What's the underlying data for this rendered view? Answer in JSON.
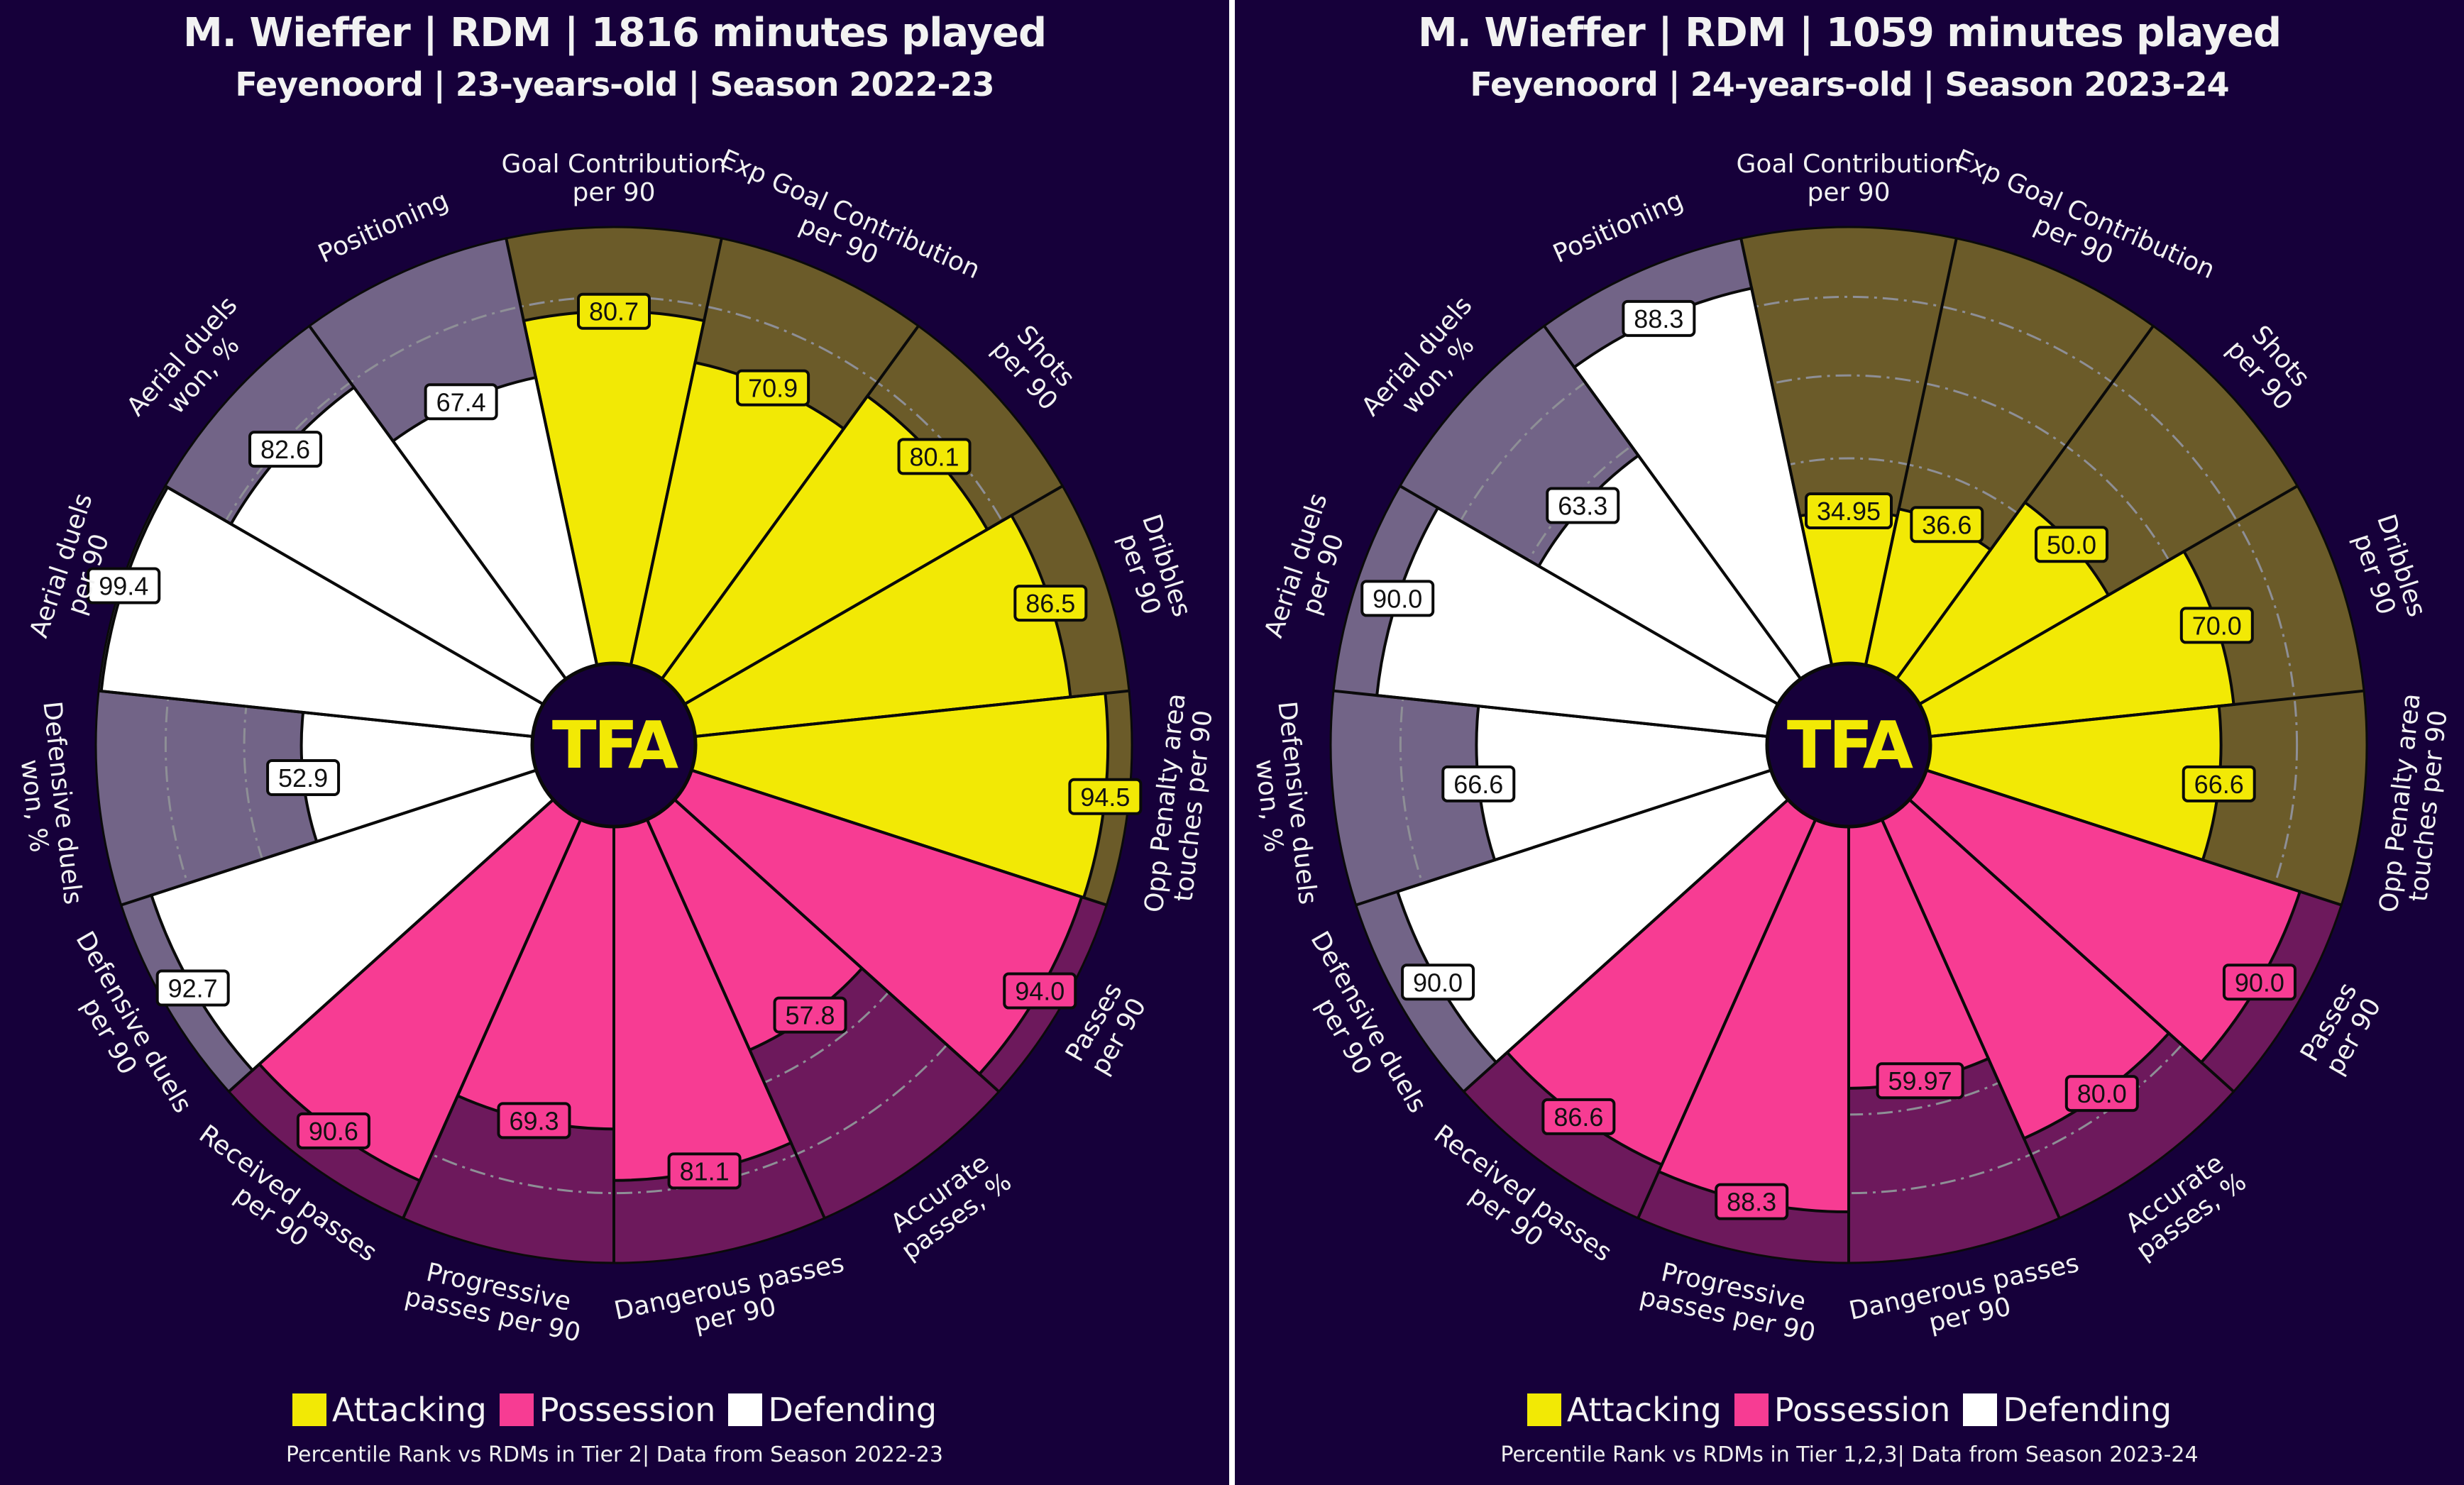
{
  "colors": {
    "background": "#16003a",
    "attacking": "#f2e905",
    "attacking_bg": "#6b5b29",
    "possession": "#f73c93",
    "possession_bg": "#6d195c",
    "defending": "#ffffff",
    "defending_bg": "#726487",
    "ring": "#8e8f96",
    "logo_text": "#f2e905"
  },
  "logo": {
    "text": "TFA"
  },
  "chart_data": [
    {
      "type": "pie",
      "subtype": "radial-percentile-pizza",
      "title": "M. Wieffer | RDM | 1816 minutes played",
      "subtitle": "Feyenoord | 23-years-old | Season 2022-23",
      "value_range": [
        0,
        100
      ],
      "categories": [
        "Goal Contribution\nper 90",
        "Exp Goal Contribution\nper 90",
        "Shots\nper 90",
        "Dribbles\nper 90",
        "Opp Penalty area\ntouches per 90",
        "Passes\nper 90",
        "Accurate\npasses, %",
        "Dangerous passes\nper 90",
        "Progressive\npasses per 90",
        "Received passes\nper 90",
        "Defensive duels\nper 90",
        "Defensive duels\nwon, %",
        "Aerial duels\nper 90",
        "Aerial duels\nwon, %",
        "Positioning"
      ],
      "groups": [
        "Attacking",
        "Attacking",
        "Attacking",
        "Attacking",
        "Attacking",
        "Possession",
        "Possession",
        "Possession",
        "Possession",
        "Possession",
        "Defending",
        "Defending",
        "Defending",
        "Defending",
        "Defending"
      ],
      "values": [
        80.7,
        70.9,
        80.1,
        86.5,
        94.5,
        94.0,
        57.8,
        81.1,
        69.3,
        90.6,
        92.7,
        52.9,
        99.4,
        82.6,
        67.4
      ],
      "value_labels": [
        "80.7",
        "70.9",
        "80.1",
        "86.5",
        "94.5",
        "94.0",
        "57.8",
        "81.1",
        "69.3",
        "90.6",
        "92.7",
        "52.9",
        "99.4",
        "82.6",
        "67.4"
      ],
      "legend": [
        "Attacking",
        "Possession",
        "Defending"
      ],
      "legend_position": "bottom",
      "footer": "Percentile Rank vs RDMs in Tier 2| Data from Season 2022-23"
    },
    {
      "type": "pie",
      "subtype": "radial-percentile-pizza",
      "title": "M. Wieffer | RDM | 1059 minutes played",
      "subtitle": "Feyenoord | 24-years-old | Season 2023-24",
      "value_range": [
        0,
        100
      ],
      "categories": [
        "Goal Contribution\nper 90",
        "Exp Goal Contribution\nper 90",
        "Shots\nper 90",
        "Dribbles\nper 90",
        "Opp Penalty area\ntouches per 90",
        "Passes\nper 90",
        "Accurate\npasses, %",
        "Dangerous passes\nper 90",
        "Progressive\npasses per 90",
        "Received passes\nper 90",
        "Defensive duels\nper 90",
        "Defensive duels\nwon, %",
        "Aerial duels\nper 90",
        "Aerial duels\nwon, %",
        "Positioning"
      ],
      "groups": [
        "Attacking",
        "Attacking",
        "Attacking",
        "Attacking",
        "Attacking",
        "Possession",
        "Possession",
        "Possession",
        "Possession",
        "Possession",
        "Defending",
        "Defending",
        "Defending",
        "Defending",
        "Defending"
      ],
      "values": [
        34.95,
        36.6,
        50.0,
        70.0,
        66.6,
        90.0,
        80.0,
        59.97,
        88.3,
        86.6,
        90.0,
        66.6,
        90.0,
        63.3,
        88.3
      ],
      "value_labels": [
        "34.95",
        "36.6",
        "50.0",
        "70.0",
        "66.6",
        "90.0",
        "80.0",
        "59.97",
        "88.3",
        "86.6",
        "90.0",
        "66.6",
        "90.0",
        "63.3",
        "88.3"
      ],
      "legend": [
        "Attacking",
        "Possession",
        "Defending"
      ],
      "legend_position": "bottom",
      "footer": "Percentile Rank vs RDMs in Tier 1,2,3| Data from Season 2023-24"
    }
  ]
}
